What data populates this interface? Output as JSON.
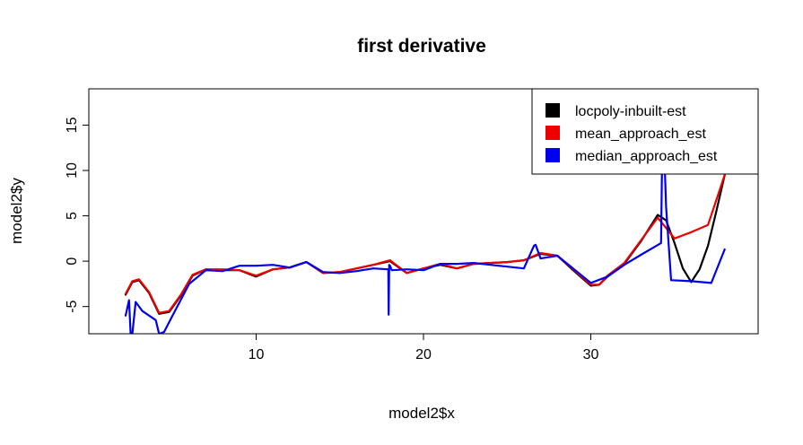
{
  "chart_data": {
    "type": "line",
    "title": "first derivative",
    "xlabel": "model2$x",
    "ylabel": "model2$y",
    "xlim": [
      0,
      40
    ],
    "ylim": [
      -8,
      19
    ],
    "xticks": [
      10,
      20,
      30
    ],
    "yticks": [
      -5,
      0,
      5,
      10,
      15
    ],
    "grid": false,
    "legend_position": "top-right",
    "series": [
      {
        "name": "locpoly-inbuilt-est",
        "color": "#000000",
        "x": [
          2.2,
          2.6,
          3.0,
          3.6,
          4.2,
          4.8,
          5.5,
          6.2,
          7.0,
          8.0,
          9.0,
          10.0,
          11.0,
          12.0,
          13.0,
          14.0,
          15.0,
          16.0,
          17.0,
          18.0,
          19.0,
          20.0,
          21.0,
          22.0,
          23.0,
          24.0,
          25.0,
          26.0,
          27.0,
          28.0,
          29.0,
          30.0,
          30.5,
          31.0,
          32.0,
          33.0,
          34.0,
          34.5,
          35.0,
          35.5,
          36.0,
          36.5,
          37.0,
          37.5,
          38.0
        ],
        "y": [
          -3.7,
          -2.3,
          -2.1,
          -3.5,
          -5.8,
          -5.6,
          -3.8,
          -1.6,
          -0.9,
          -1.0,
          -1.0,
          -1.7,
          -0.9,
          -0.7,
          -0.1,
          -1.3,
          -1.2,
          -0.8,
          -0.4,
          0.0,
          -1.3,
          -0.8,
          -0.4,
          -0.8,
          -0.3,
          -0.2,
          -0.1,
          0.1,
          0.8,
          0.6,
          -1.1,
          -2.7,
          -2.6,
          -1.7,
          -0.3,
          2.2,
          5.1,
          4.5,
          2.0,
          -0.8,
          -2.3,
          -0.9,
          1.7,
          5.5,
          9.5
        ]
      },
      {
        "name": "mean_approach_est",
        "color": "#ee0000",
        "x": [
          2.2,
          2.6,
          3.0,
          3.6,
          4.2,
          4.8,
          5.5,
          6.2,
          7.0,
          8.0,
          9.0,
          10.0,
          11.0,
          12.0,
          13.0,
          14.0,
          15.0,
          16.0,
          17.0,
          18.0,
          19.0,
          20.0,
          21.0,
          22.0,
          23.0,
          24.0,
          25.0,
          26.0,
          27.0,
          28.0,
          29.0,
          30.0,
          30.5,
          31.0,
          32.0,
          33.0,
          34.0,
          35.0,
          36.0,
          37.0,
          38.0
        ],
        "y": [
          -3.6,
          -2.2,
          -2.0,
          -3.4,
          -5.7,
          -5.5,
          -3.7,
          -1.5,
          -0.9,
          -0.9,
          -1.0,
          -1.6,
          -0.9,
          -0.7,
          -0.1,
          -1.3,
          -1.2,
          -0.8,
          -0.4,
          0.1,
          -1.3,
          -0.8,
          -0.3,
          -0.8,
          -0.3,
          -0.2,
          -0.1,
          0.1,
          0.9,
          0.6,
          -1.0,
          -2.6,
          -2.6,
          -1.6,
          -0.2,
          2.3,
          4.8,
          2.5,
          3.2,
          4.0,
          9.5
        ]
      },
      {
        "name": "median_approach_est",
        "color": "#0000ee",
        "x": [
          2.2,
          2.4,
          2.5,
          2.6,
          2.8,
          3.2,
          4.0,
          4.2,
          4.5,
          5.0,
          6.0,
          7.0,
          8.0,
          9.0,
          10.0,
          11.0,
          12.0,
          13.0,
          14.0,
          15.0,
          16.0,
          17.0,
          17.9,
          17.92,
          17.95,
          18.0,
          18.1,
          19.0,
          20.0,
          21.0,
          22.0,
          23.0,
          24.0,
          25.0,
          26.0,
          26.6,
          26.7,
          27.0,
          28.0,
          29.0,
          30.0,
          31.0,
          32.0,
          33.0,
          34.2,
          34.25,
          34.3,
          34.5,
          34.8,
          36.0,
          37.2,
          38.0
        ],
        "y": [
          -6.0,
          -4.3,
          -8.0,
          -8.0,
          -4.5,
          -5.5,
          -6.5,
          -8.0,
          -7.8,
          -6.0,
          -2.5,
          -1.0,
          -1.1,
          -0.5,
          -0.5,
          -0.4,
          -0.7,
          -0.1,
          -1.2,
          -1.3,
          -1.1,
          -0.8,
          -0.9,
          -5.9,
          -0.4,
          -0.5,
          -1.0,
          -0.9,
          -1.0,
          -0.3,
          -0.3,
          -0.2,
          -0.4,
          -0.6,
          -0.8,
          1.7,
          1.8,
          0.3,
          0.6,
          -0.9,
          -2.4,
          -1.7,
          -0.4,
          0.7,
          2.0,
          10.0,
          17.0,
          6.0,
          -2.1,
          -2.2,
          -2.4,
          1.3
        ]
      }
    ]
  }
}
